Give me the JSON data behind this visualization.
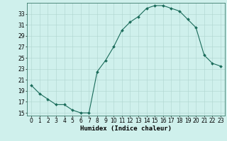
{
  "x": [
    0,
    1,
    2,
    3,
    4,
    5,
    6,
    7,
    8,
    9,
    10,
    11,
    12,
    13,
    14,
    15,
    16,
    17,
    18,
    19,
    20,
    21,
    22,
    23
  ],
  "y": [
    20,
    18.5,
    17.5,
    16.5,
    16.5,
    15.5,
    15,
    15,
    22.5,
    24.5,
    27,
    30,
    31.5,
    32.5,
    34,
    34.5,
    34.5,
    34,
    33.5,
    32,
    30.5,
    25.5,
    24,
    23.5
  ],
  "line_color": "#1a6b5a",
  "marker": "D",
  "marker_size": 2.0,
  "bg_color": "#cff0ec",
  "grid_color": "#aed4ce",
  "xlabel": "Humidex (Indice chaleur)",
  "xlim": [
    -0.5,
    23.5
  ],
  "ylim": [
    14.5,
    35
  ],
  "yticks": [
    15,
    17,
    19,
    21,
    23,
    25,
    27,
    29,
    31,
    33
  ],
  "xticks": [
    0,
    1,
    2,
    3,
    4,
    5,
    6,
    7,
    8,
    9,
    10,
    11,
    12,
    13,
    14,
    15,
    16,
    17,
    18,
    19,
    20,
    21,
    22,
    23
  ],
  "tick_fontsize": 5.5,
  "xlabel_fontsize": 6.5,
  "spine_color": "#3a7a6a",
  "axis_bg": "#cff0ec"
}
